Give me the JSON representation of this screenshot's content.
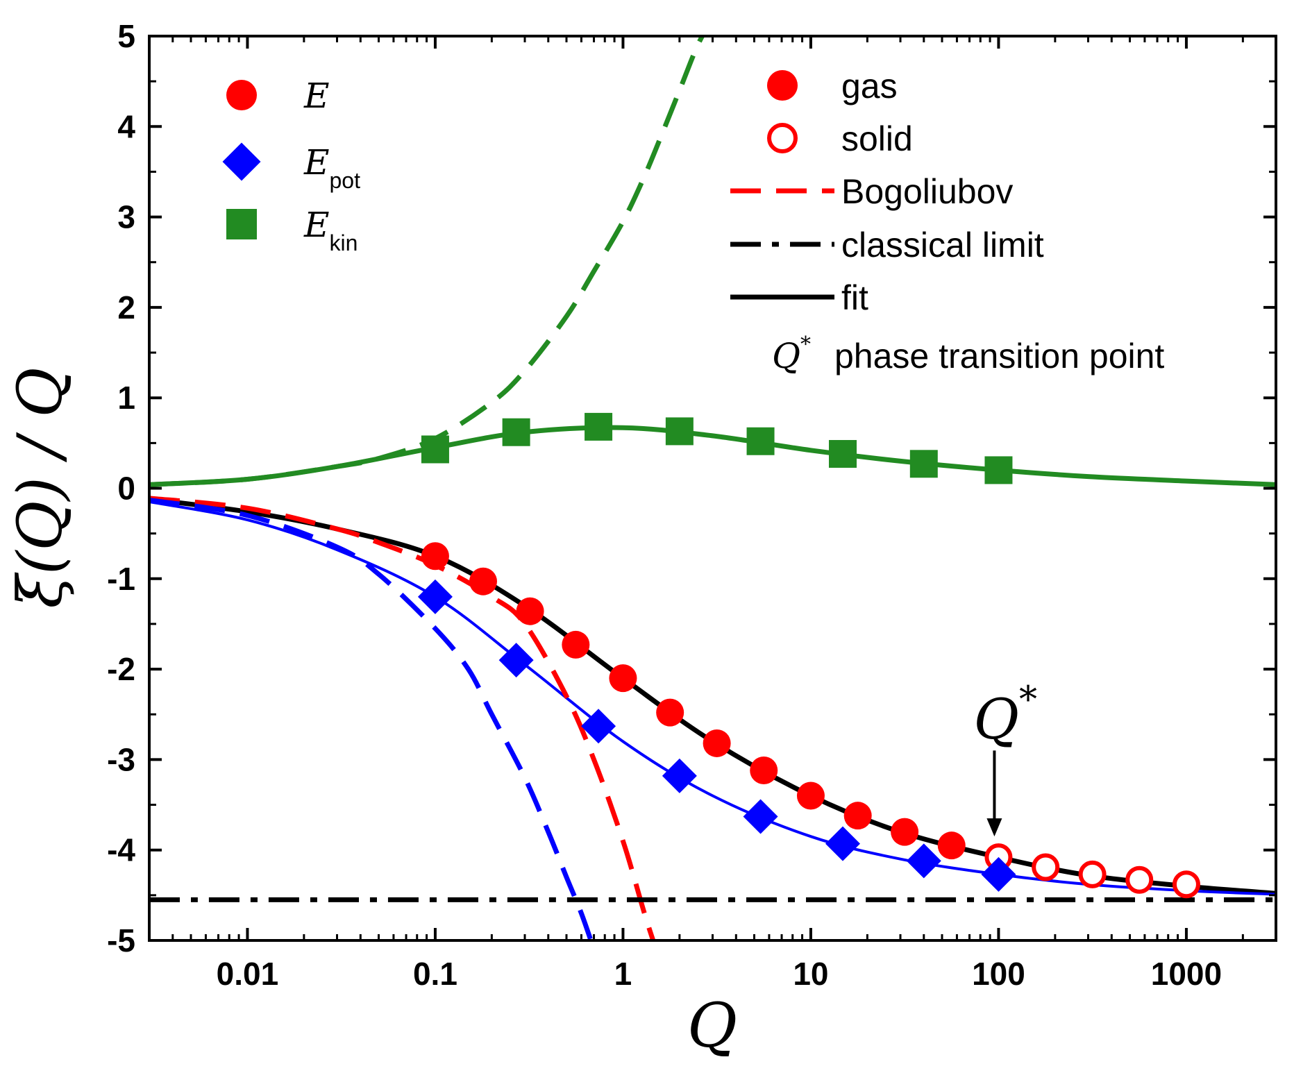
{
  "chart_data": {
    "type": "line",
    "xscale": "log",
    "xlim": [
      0.003,
      3000
    ],
    "ylim": [
      -5,
      5
    ],
    "xticks": [
      0.01,
      0.1,
      1,
      10,
      100,
      1000
    ],
    "xtick_labels": [
      "0.01",
      "0.1",
      "1",
      "10",
      "100",
      "1000"
    ],
    "yticks": [
      -5,
      -4,
      -3,
      -2,
      -1,
      0,
      1,
      2,
      3,
      4,
      5
    ],
    "ytick_labels": [
      "-5",
      "-4",
      "-3",
      "-2",
      "-1",
      "0",
      "1",
      "2",
      "3",
      "4",
      "5"
    ],
    "xlabel": "Q",
    "ylabel": "ξ(Q) / Q",
    "colors": {
      "E": "#ff0000",
      "E_pot": "#0000ff",
      "E_kin": "#228b22",
      "classical": "#000000",
      "fit": "#000000"
    },
    "series": [
      {
        "name": "E gas",
        "marker": "circle-filled",
        "color": "#ff0000",
        "x": [
          0.1,
          0.18,
          0.32,
          0.56,
          1.0,
          1.78,
          3.16,
          5.62,
          10,
          17.8,
          31.6,
          56.2
        ],
        "y": [
          -0.75,
          -1.03,
          -1.36,
          -1.73,
          -2.1,
          -2.48,
          -2.82,
          -3.12,
          -3.4,
          -3.62,
          -3.8,
          -3.95
        ]
      },
      {
        "name": "E solid",
        "marker": "circle-open",
        "color": "#ff0000",
        "x": [
          100,
          178,
          316,
          562,
          1000
        ],
        "y": [
          -4.08,
          -4.19,
          -4.27,
          -4.33,
          -4.38
        ]
      },
      {
        "name": "E_pot",
        "marker": "diamond",
        "color": "#0000ff",
        "x": [
          0.1,
          0.27,
          0.74,
          2.0,
          5.4,
          14.8,
          40,
          100
        ],
        "y": [
          -1.2,
          -1.9,
          -2.63,
          -3.18,
          -3.63,
          -3.93,
          -4.12,
          -4.27
        ]
      },
      {
        "name": "E_kin",
        "marker": "square",
        "color": "#228b22",
        "x": [
          0.1,
          0.27,
          0.74,
          2.0,
          5.4,
          14.8,
          40,
          100
        ],
        "y": [
          0.43,
          0.62,
          0.68,
          0.63,
          0.52,
          0.38,
          0.27,
          0.2
        ]
      }
    ],
    "curves": [
      {
        "name": "fit E",
        "style": "solid",
        "color": "#000000",
        "width": 7,
        "x": [
          0.003,
          0.01,
          0.03,
          0.1,
          0.3,
          1,
          3,
          10,
          30,
          100,
          300,
          1000,
          3000
        ],
        "y": [
          -0.12,
          -0.26,
          -0.45,
          -0.75,
          -1.3,
          -2.1,
          -2.8,
          -3.4,
          -3.8,
          -4.08,
          -4.28,
          -4.4,
          -4.48
        ]
      },
      {
        "name": "fit E_pot",
        "style": "solid",
        "color": "#0000ff",
        "width": 4,
        "x": [
          0.003,
          0.01,
          0.03,
          0.1,
          0.3,
          1,
          3,
          10,
          30,
          100,
          300,
          1000,
          3000
        ],
        "y": [
          -0.15,
          -0.35,
          -0.68,
          -1.2,
          -1.95,
          -2.8,
          -3.4,
          -3.85,
          -4.1,
          -4.27,
          -4.38,
          -4.45,
          -4.49
        ]
      },
      {
        "name": "fit E_kin",
        "style": "solid",
        "color": "#228b22",
        "width": 7,
        "x": [
          0.003,
          0.01,
          0.03,
          0.1,
          0.3,
          1,
          3,
          10,
          30,
          100,
          300,
          1000,
          3000
        ],
        "y": [
          0.04,
          0.1,
          0.24,
          0.45,
          0.62,
          0.67,
          0.58,
          0.42,
          0.3,
          0.2,
          0.13,
          0.08,
          0.04
        ]
      },
      {
        "name": "Bogoliubov E",
        "style": "dashed",
        "color": "#ff0000",
        "width": 7,
        "x": [
          0.003,
          0.01,
          0.03,
          0.05,
          0.1,
          0.2,
          0.3,
          0.5,
          0.7,
          1.0,
          1.3,
          1.5
        ],
        "y": [
          -0.11,
          -0.22,
          -0.45,
          -0.6,
          -0.85,
          -1.2,
          -1.5,
          -2.3,
          -3.0,
          -3.9,
          -4.7,
          -5.1
        ]
      },
      {
        "name": "Bogoliubov E_pot",
        "style": "dashed",
        "color": "#0000ff",
        "width": 7,
        "x": [
          0.003,
          0.01,
          0.03,
          0.05,
          0.1,
          0.15,
          0.2,
          0.3,
          0.4,
          0.5,
          0.6,
          0.7
        ],
        "y": [
          -0.13,
          -0.3,
          -0.65,
          -0.95,
          -1.55,
          -2.0,
          -2.5,
          -3.2,
          -3.8,
          -4.3,
          -4.7,
          -5.1
        ]
      },
      {
        "name": "Bogoliubov E_kin",
        "style": "dashed",
        "color": "#228b22",
        "width": 7,
        "x": [
          0.003,
          0.01,
          0.03,
          0.05,
          0.1,
          0.2,
          0.3,
          0.5,
          0.7,
          1.0,
          1.3,
          1.6,
          2.0,
          2.5,
          3.0
        ],
        "y": [
          0.04,
          0.1,
          0.24,
          0.33,
          0.55,
          0.95,
          1.3,
          1.9,
          2.4,
          2.95,
          3.45,
          3.9,
          4.4,
          4.9,
          5.2
        ]
      },
      {
        "name": "classical limit",
        "style": "dashdot",
        "color": "#000000",
        "width": 7,
        "x": [
          0.003,
          3000
        ],
        "y": [
          -4.55,
          -4.55
        ]
      }
    ],
    "annotation": {
      "label": "Q",
      "superscript": "*",
      "x": 95,
      "arrow_from_y": -2.9,
      "arrow_to_y": -3.85
    }
  },
  "legend_left": [
    {
      "label": "E",
      "sub": "",
      "marker": "circle-filled",
      "color": "#ff0000"
    },
    {
      "label": "E",
      "sub": "pot",
      "marker": "diamond",
      "color": "#0000ff"
    },
    {
      "label": "E",
      "sub": "kin",
      "marker": "square",
      "color": "#228b22"
    }
  ],
  "legend_right": [
    {
      "label": "gas",
      "marker": "circle-filled",
      "color": "#ff0000"
    },
    {
      "label": "solid",
      "marker": "circle-open",
      "color": "#ff0000"
    },
    {
      "label": "Bogoliubov",
      "marker": "dashed",
      "color": "#ff0000"
    },
    {
      "label": "classical limit",
      "marker": "dashdot",
      "color": "#000000"
    },
    {
      "label": "fit",
      "marker": "solid",
      "color": "#000000"
    }
  ],
  "legend_note": {
    "symbol": "Q",
    "sup": "*",
    "text": "phase transition point"
  }
}
